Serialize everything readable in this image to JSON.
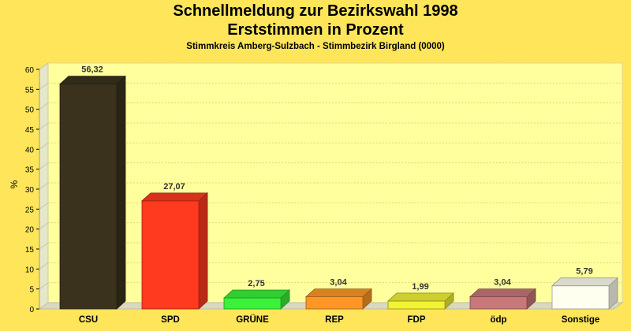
{
  "chart_data": {
    "type": "bar",
    "title": "Schnellmeldung zur Bezirkswahl 1998",
    "title2": "Erststimmen in Prozent",
    "subtitle": "Stimmkreis Amberg-Sulzbach - Stimmbezirk Birgland (0000)",
    "ylabel": "%",
    "xlabel": "",
    "ylim": [
      0,
      60
    ],
    "yticks": [
      0,
      5,
      10,
      15,
      20,
      25,
      30,
      35,
      40,
      45,
      50,
      55,
      60
    ],
    "grid": true,
    "categories": [
      "CSU",
      "SPD",
      "GRÜNE",
      "REP",
      "FDP",
      "ödp",
      "Sonstige"
    ],
    "values": [
      56.32,
      27.07,
      2.75,
      3.04,
      1.99,
      3.04,
      5.79
    ],
    "value_labels": [
      "56,32",
      "27,07",
      "2,75",
      "3,04",
      "1,99",
      "3,04",
      "5,79"
    ],
    "colors": [
      "#3a321d",
      "#ff3a1e",
      "#3af23a",
      "#ff9626",
      "#f2f236",
      "#c87878",
      "#fffff0"
    ],
    "background": "#ffe55a",
    "plot_background": "#ffff9e"
  }
}
